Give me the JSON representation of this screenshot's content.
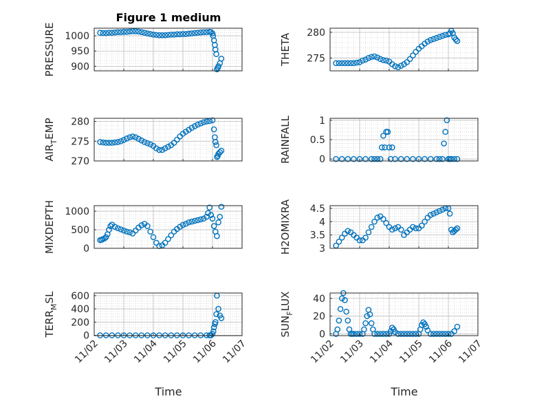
{
  "figure": {
    "title": "Figure 1 medium"
  },
  "colors": {
    "marker": "#0072BD",
    "axis": "#262626",
    "grid": "#bdbdbd",
    "background": "#ffffff"
  },
  "x_axis": {
    "label": "Time",
    "range": [
      "11/02",
      "11/07"
    ],
    "ticks": [
      "11/02",
      "11/03",
      "11/04",
      "11/05",
      "11/06",
      "11/07"
    ]
  },
  "chart_data": [
    {
      "type": "scatter",
      "ylabel": "PRESSURE",
      "xlabel": "",
      "grid": true,
      "ylim": [
        885,
        1025
      ],
      "yticks": [
        1000,
        950,
        900
      ],
      "x": [
        2.2,
        2.3,
        2.4,
        2.5,
        2.6,
        2.7,
        2.8,
        2.9,
        3.0,
        3.1,
        3.2,
        3.3,
        3.4,
        3.5,
        3.6,
        3.7,
        3.8,
        3.9,
        4.0,
        4.1,
        4.2,
        4.3,
        4.4,
        4.5,
        4.6,
        4.7,
        4.8,
        4.9,
        5.0,
        5.1,
        5.2,
        5.3,
        5.4,
        5.5,
        5.6,
        5.7,
        5.8,
        5.9,
        5.95,
        6.0,
        6.02,
        6.05,
        6.08,
        6.1,
        6.13,
        6.15,
        6.18,
        6.2,
        6.25,
        6.3
      ],
      "y": [
        1010,
        1009,
        1009,
        1010,
        1010,
        1011,
        1012,
        1012,
        1013,
        1013,
        1014,
        1015,
        1015,
        1014,
        1012,
        1010,
        1008,
        1006,
        1004,
        1003,
        1002,
        1002,
        1002,
        1003,
        1004,
        1004,
        1005,
        1005,
        1006,
        1006,
        1007,
        1008,
        1009,
        1010,
        1011,
        1012,
        1012,
        1013,
        1012,
        1008,
        1000,
        985,
        970,
        955,
        940,
        890,
        895,
        900,
        910,
        925
      ]
    },
    {
      "type": "scatter",
      "ylabel": "THETA",
      "xlabel": "",
      "grid": true,
      "ylim": [
        272.5,
        280.8
      ],
      "yticks": [
        280,
        275
      ],
      "x": [
        2.2,
        2.3,
        2.4,
        2.5,
        2.6,
        2.7,
        2.8,
        2.9,
        3.0,
        3.1,
        3.2,
        3.3,
        3.4,
        3.5,
        3.6,
        3.7,
        3.8,
        3.9,
        4.0,
        4.1,
        4.2,
        4.3,
        4.4,
        4.5,
        4.6,
        4.7,
        4.8,
        4.9,
        5.0,
        5.1,
        5.2,
        5.3,
        5.4,
        5.5,
        5.6,
        5.7,
        5.8,
        5.9,
        6.0,
        6.05,
        6.1,
        6.15,
        6.2,
        6.25,
        6.3
      ],
      "y": [
        274.0,
        274.0,
        274.0,
        274.0,
        274.0,
        274.0,
        274.0,
        274.1,
        274.2,
        274.5,
        274.7,
        275.0,
        275.2,
        275.3,
        275.1,
        274.8,
        274.6,
        274.5,
        274.3,
        273.8,
        273.4,
        273.2,
        273.5,
        273.8,
        274.2,
        274.8,
        275.5,
        276.2,
        276.8,
        277.3,
        277.8,
        278.2,
        278.5,
        278.7,
        278.9,
        279.1,
        279.3,
        279.5,
        279.6,
        279.8,
        280.3,
        279.8,
        279.0,
        278.6,
        278.3
      ]
    },
    {
      "type": "scatter",
      "ylabel": "AIR_TEMP",
      "xlabel": "",
      "grid": true,
      "ylim": [
        270,
        280.8
      ],
      "yticks": [
        280,
        275,
        270
      ],
      "x": [
        2.2,
        2.3,
        2.4,
        2.5,
        2.6,
        2.7,
        2.8,
        2.9,
        3.0,
        3.1,
        3.2,
        3.3,
        3.4,
        3.5,
        3.6,
        3.7,
        3.8,
        3.9,
        4.0,
        4.1,
        4.2,
        4.3,
        4.4,
        4.5,
        4.6,
        4.7,
        4.8,
        4.9,
        5.0,
        5.1,
        5.2,
        5.3,
        5.4,
        5.5,
        5.6,
        5.7,
        5.8,
        5.9,
        6.0,
        6.05,
        6.08,
        6.1,
        6.13,
        6.15,
        6.18,
        6.2,
        6.25,
        6.3
      ],
      "y": [
        274.8,
        274.7,
        274.6,
        274.6,
        274.6,
        274.7,
        274.8,
        275.0,
        275.3,
        275.7,
        276.0,
        276.2,
        276.0,
        275.6,
        275.2,
        274.8,
        274.5,
        274.2,
        273.8,
        273.2,
        272.8,
        272.8,
        273.2,
        273.6,
        274.0,
        274.6,
        275.4,
        276.2,
        276.9,
        277.4,
        277.9,
        278.4,
        278.8,
        279.2,
        279.5,
        279.8,
        280.0,
        280.1,
        280.3,
        278.0,
        276.0,
        274.8,
        274.0,
        271.0,
        271.3,
        271.8,
        272.2,
        272.6
      ]
    },
    {
      "type": "scatter",
      "ylabel": "RAINFALL",
      "xlabel": "",
      "grid": true,
      "ylim": [
        -0.05,
        1.05
      ],
      "yticks": [
        1,
        0.5,
        0
      ],
      "x": [
        2.2,
        2.4,
        2.6,
        2.8,
        3.0,
        3.2,
        3.4,
        3.5,
        3.6,
        3.7,
        3.75,
        3.8,
        3.85,
        3.9,
        3.95,
        4.0,
        4.05,
        4.1,
        4.2,
        4.4,
        4.6,
        4.8,
        5.0,
        5.2,
        5.4,
        5.6,
        5.7,
        5.8,
        5.85,
        5.9,
        5.95,
        6.0,
        6.05,
        6.1,
        6.2,
        6.3
      ],
      "y": [
        0,
        0,
        0,
        0,
        0,
        0,
        0,
        0,
        0,
        0,
        0.3,
        0.6,
        0.3,
        0.7,
        0.7,
        0.3,
        0,
        0.3,
        0,
        0,
        0,
        0,
        0,
        0,
        0,
        0,
        0,
        0,
        0.4,
        0.7,
        1.0,
        0,
        0,
        0,
        0,
        0
      ]
    },
    {
      "type": "scatter",
      "ylabel": "MIXDEPTH",
      "xlabel": "",
      "grid": true,
      "ylim": [
        0,
        1150
      ],
      "yticks": [
        1000,
        500,
        0
      ],
      "x": [
        2.2,
        2.25,
        2.3,
        2.35,
        2.4,
        2.45,
        2.5,
        2.55,
        2.6,
        2.7,
        2.8,
        2.9,
        3.0,
        3.1,
        3.2,
        3.3,
        3.4,
        3.5,
        3.6,
        3.7,
        3.8,
        3.9,
        4.0,
        4.1,
        4.2,
        4.3,
        4.4,
        4.5,
        4.6,
        4.7,
        4.8,
        4.9,
        5.0,
        5.1,
        5.2,
        5.3,
        5.4,
        5.5,
        5.6,
        5.7,
        5.8,
        5.85,
        5.9,
        5.95,
        6.0,
        6.05,
        6.1,
        6.15,
        6.2,
        6.25,
        6.3
      ],
      "y": [
        220,
        230,
        250,
        270,
        300,
        380,
        500,
        600,
        640,
        580,
        540,
        510,
        480,
        450,
        430,
        400,
        480,
        560,
        620,
        660,
        600,
        450,
        300,
        150,
        60,
        80,
        150,
        250,
        350,
        450,
        520,
        580,
        630,
        660,
        700,
        720,
        740,
        760,
        780,
        800,
        850,
        950,
        1100,
        900,
        800,
        600,
        450,
        330,
        700,
        850,
        1120
      ]
    },
    {
      "type": "scatter",
      "ylabel": "H2OMIXRA",
      "xlabel": "",
      "grid": true,
      "ylim": [
        3.0,
        4.6
      ],
      "yticks": [
        4.5,
        4,
        3.5,
        3
      ],
      "x": [
        2.2,
        2.3,
        2.4,
        2.5,
        2.6,
        2.7,
        2.8,
        2.9,
        3.0,
        3.1,
        3.2,
        3.3,
        3.4,
        3.5,
        3.6,
        3.7,
        3.8,
        3.9,
        4.0,
        4.1,
        4.2,
        4.3,
        4.4,
        4.5,
        4.6,
        4.7,
        4.8,
        4.9,
        5.0,
        5.1,
        5.2,
        5.3,
        5.4,
        5.5,
        5.6,
        5.7,
        5.8,
        5.9,
        6.0,
        6.05,
        6.1,
        6.15,
        6.2,
        6.25,
        6.3
      ],
      "y": [
        3.1,
        3.25,
        3.4,
        3.55,
        3.65,
        3.6,
        3.5,
        3.4,
        3.3,
        3.3,
        3.4,
        3.6,
        3.8,
        4.0,
        4.15,
        4.2,
        4.1,
        3.95,
        3.8,
        3.7,
        3.75,
        3.8,
        3.7,
        3.5,
        3.6,
        3.7,
        3.8,
        3.75,
        3.75,
        3.85,
        4.0,
        4.15,
        4.25,
        4.3,
        4.35,
        4.4,
        4.45,
        4.5,
        4.5,
        4.3,
        3.7,
        3.6,
        3.65,
        3.7,
        3.75
      ]
    },
    {
      "type": "scatter",
      "ylabel": "TERR_MSL",
      "xlabel": "Time",
      "grid": true,
      "ylim": [
        -5,
        640
      ],
      "yticks": [
        600,
        400,
        200,
        0
      ],
      "x": [
        2.2,
        2.4,
        2.6,
        2.8,
        3.0,
        3.2,
        3.4,
        3.6,
        3.8,
        4.0,
        4.2,
        4.4,
        4.6,
        4.8,
        5.0,
        5.2,
        5.4,
        5.6,
        5.8,
        5.9,
        5.95,
        6.0,
        6.03,
        6.05,
        6.08,
        6.1,
        6.13,
        6.15,
        6.2,
        6.25,
        6.3
      ],
      "y": [
        0,
        0,
        0,
        0,
        0,
        0,
        0,
        0,
        0,
        0,
        0,
        0,
        0,
        0,
        0,
        0,
        0,
        0,
        0,
        0,
        0,
        20,
        60,
        120,
        170,
        200,
        320,
        600,
        400,
        300,
        260
      ]
    },
    {
      "type": "scatter",
      "ylabel": "SUN_FLUX",
      "xlabel": "Time",
      "grid": true,
      "ylim": [
        -2,
        46
      ],
      "yticks": [
        40,
        20,
        0
      ],
      "x": [
        2.2,
        2.25,
        2.3,
        2.35,
        2.4,
        2.45,
        2.5,
        2.55,
        2.6,
        2.65,
        2.7,
        2.75,
        2.8,
        2.9,
        3.0,
        3.1,
        3.15,
        3.2,
        3.25,
        3.3,
        3.35,
        3.4,
        3.45,
        3.5,
        3.6,
        3.7,
        3.8,
        3.9,
        4.0,
        4.05,
        4.1,
        4.15,
        4.2,
        4.3,
        4.4,
        4.5,
        4.6,
        4.7,
        4.8,
        4.9,
        5.0,
        5.05,
        5.1,
        5.15,
        5.2,
        5.25,
        5.3,
        5.4,
        5.5,
        5.6,
        5.7,
        5.8,
        5.9,
        6.0,
        6.1,
        6.2,
        6.3
      ],
      "y": [
        0,
        5,
        15,
        28,
        40,
        46,
        38,
        25,
        15,
        5,
        0,
        0,
        0,
        0,
        0,
        0,
        5,
        12,
        20,
        27,
        22,
        12,
        5,
        0,
        0,
        0,
        0,
        0,
        0,
        3,
        7,
        5,
        2,
        0,
        0,
        0,
        0,
        0,
        0,
        0,
        0,
        5,
        10,
        13,
        11,
        8,
        4,
        0,
        0,
        0,
        0,
        0,
        0,
        0,
        0,
        3,
        8
      ]
    }
  ]
}
